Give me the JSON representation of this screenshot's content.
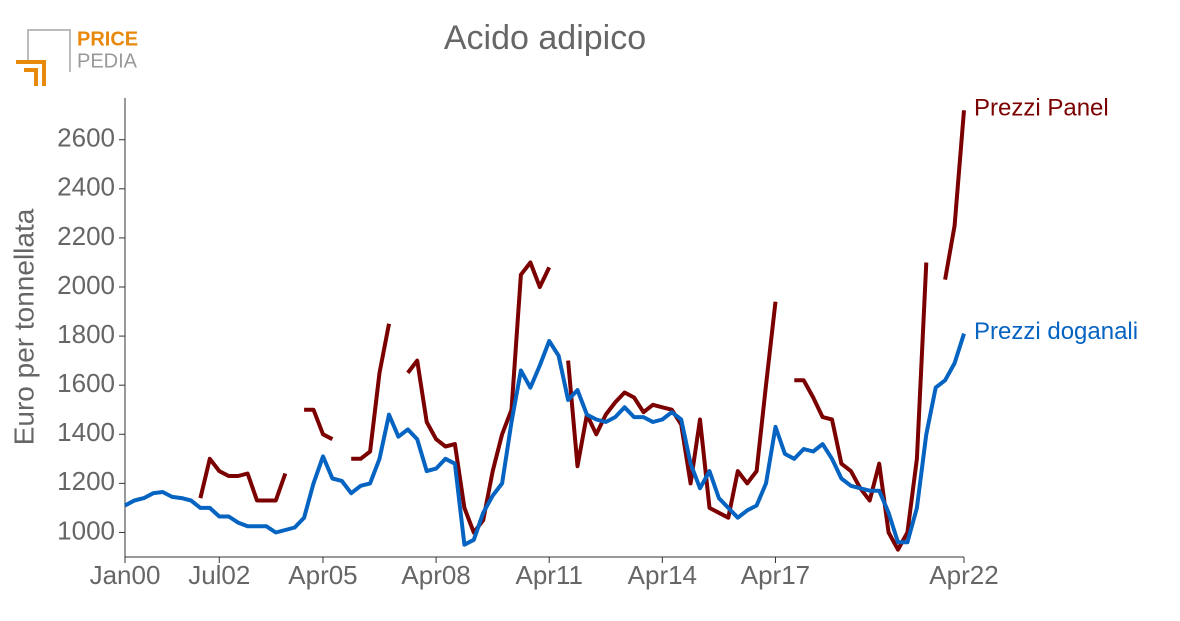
{
  "chart_data": {
    "type": "line",
    "title": "Acido adipico",
    "ylabel": "Euro per tonnellata",
    "logo": [
      "PRICE",
      "PEDIA"
    ],
    "categories": [
      "Jan00",
      null,
      null,
      null,
      null,
      null,
      null,
      null,
      null,
      null,
      "Jul02",
      null,
      null,
      null,
      null,
      null,
      null,
      null,
      null,
      null,
      null,
      "Apr05",
      null,
      null,
      null,
      null,
      null,
      null,
      null,
      null,
      null,
      null,
      null,
      "Apr08",
      null,
      null,
      null,
      null,
      null,
      null,
      null,
      null,
      null,
      null,
      null,
      "Apr11",
      null,
      null,
      null,
      null,
      null,
      null,
      null,
      null,
      null,
      null,
      null,
      "Apr14",
      null,
      null,
      null,
      null,
      null,
      null,
      null,
      null,
      null,
      null,
      null,
      "Apr17",
      null,
      null,
      null,
      null,
      null,
      null,
      null,
      null,
      null,
      null,
      null,
      null,
      null,
      null,
      null,
      null,
      null,
      null,
      null,
      "Apr22"
    ],
    "series": [
      {
        "name": "Prezzi Panel",
        "color": "#7b0000",
        "values": [
          null,
          null,
          null,
          null,
          null,
          null,
          null,
          null,
          1140,
          1300,
          1250,
          1230,
          1230,
          1240,
          1130,
          1130,
          1130,
          1240,
          null,
          1500,
          1500,
          1400,
          1380,
          null,
          1300,
          1300,
          1330,
          1650,
          1850,
          null,
          1650,
          1700,
          1450,
          1380,
          1350,
          1360,
          1100,
          1000,
          1050,
          1250,
          1400,
          1500,
          2050,
          2100,
          2000,
          2080,
          null,
          1700,
          1270,
          1480,
          1400,
          1480,
          1530,
          1570,
          1550,
          1490,
          1520,
          1510,
          1500,
          1440,
          1200,
          1460,
          1100,
          1080,
          1060,
          1250,
          1200,
          1250,
          1600,
          1940,
          null,
          1620,
          1620,
          1550,
          1470,
          1460,
          1280,
          1250,
          1180,
          1130,
          1280,
          1000,
          930,
          1000,
          1300,
          2100,
          null,
          2030,
          2250,
          2720
        ]
      },
      {
        "name": "Prezzi doganali",
        "color": "#0563c1",
        "values": [
          1110,
          1130,
          1140,
          1160,
          1165,
          1145,
          1140,
          1130,
          1100,
          1100,
          1065,
          1065,
          1040,
          1025,
          1025,
          1025,
          1000,
          1010,
          1020,
          1060,
          1200,
          1310,
          1220,
          1210,
          1160,
          1190,
          1200,
          1300,
          1480,
          1390,
          1420,
          1380,
          1250,
          1260,
          1300,
          1280,
          950,
          970,
          1080,
          1150,
          1200,
          1450,
          1660,
          1590,
          1680,
          1780,
          1720,
          1540,
          1580,
          1480,
          1460,
          1450,
          1470,
          1510,
          1470,
          1470,
          1450,
          1460,
          1490,
          1460,
          1280,
          1180,
          1250,
          1140,
          1100,
          1060,
          1090,
          1110,
          1200,
          1430,
          1320,
          1300,
          1340,
          1330,
          1360,
          1300,
          1220,
          1190,
          1180,
          1170,
          1170,
          1080,
          960,
          960,
          1100,
          1400,
          1590,
          1620,
          1690,
          1810
        ]
      }
    ],
    "ylim": [
      900,
      2770
    ],
    "yticks": [
      1000,
      1200,
      1400,
      1600,
      1800,
      2000,
      2200,
      2400,
      2600
    ],
    "grid": false
  }
}
